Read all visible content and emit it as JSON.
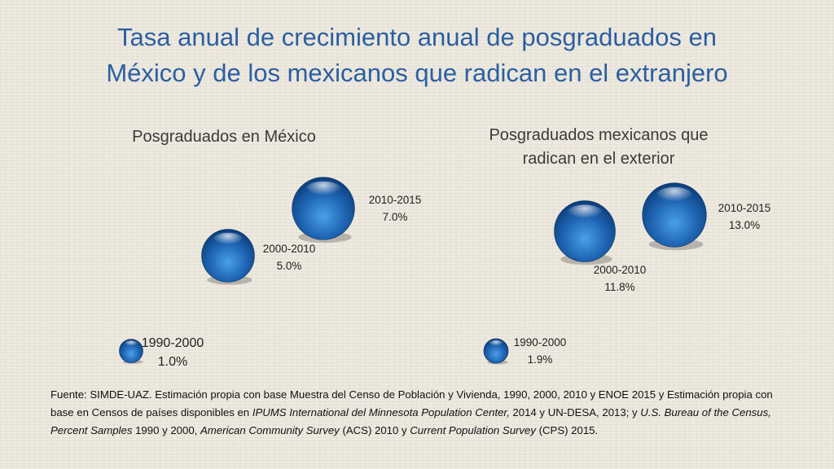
{
  "title_lines": [
    "Tasa anual de crecimiento anual de posgraduados en",
    "México y de los mexicanos que radican en el extranjero"
  ],
  "colors": {
    "title": "#2b5fa3",
    "bubble": "#1f66b4",
    "bubble_dark": "#0b3d7a",
    "bubble_light": "#8fc3f0"
  },
  "chart_data": [
    {
      "type": "bubble",
      "title": "Posgraduados en México",
      "categories": [
        "1990-2000",
        "2000-2010",
        "2010-2015"
      ],
      "values": [
        1.0,
        5.0,
        7.0
      ],
      "value_labels": [
        "1.0%",
        "5.0%",
        "7.0%"
      ],
      "unit": "%"
    },
    {
      "type": "bubble",
      "title_lines": [
        "Posgraduados mexicanos que",
        "radican en el exterior"
      ],
      "categories": [
        "1990-2000",
        "2000-2010",
        "2010-2015"
      ],
      "values": [
        1.9,
        11.8,
        13.0
      ],
      "value_labels": [
        "1.9%",
        "11.8%",
        "13.0%"
      ],
      "unit": "%"
    }
  ],
  "source": {
    "parts": [
      {
        "text": "Fuente: SIMDE-UAZ. Estimación propia con base Muestra del Censo de Población y Vivienda, 1990, 2000, 2010 y ENOE 2015 y Estimación propia con base en Censos de países disponibles en ",
        "italic": false
      },
      {
        "text": "IPUMS International del Minnesota Population Center,",
        "italic": true
      },
      {
        "text": " 2014 y UN-DESA, 2013; y ",
        "italic": false
      },
      {
        "text": "U.S. Bureau of the Census, Percent Samples",
        "italic": true
      },
      {
        "text": " 1990 y 2000, ",
        "italic": false
      },
      {
        "text": "American Community Survey",
        "italic": true
      },
      {
        "text": " (ACS) 2010 y ",
        "italic": false
      },
      {
        "text": "Current Population Survey",
        "italic": true
      },
      {
        "text": " (CPS) 2015.",
        "italic": false
      }
    ]
  }
}
